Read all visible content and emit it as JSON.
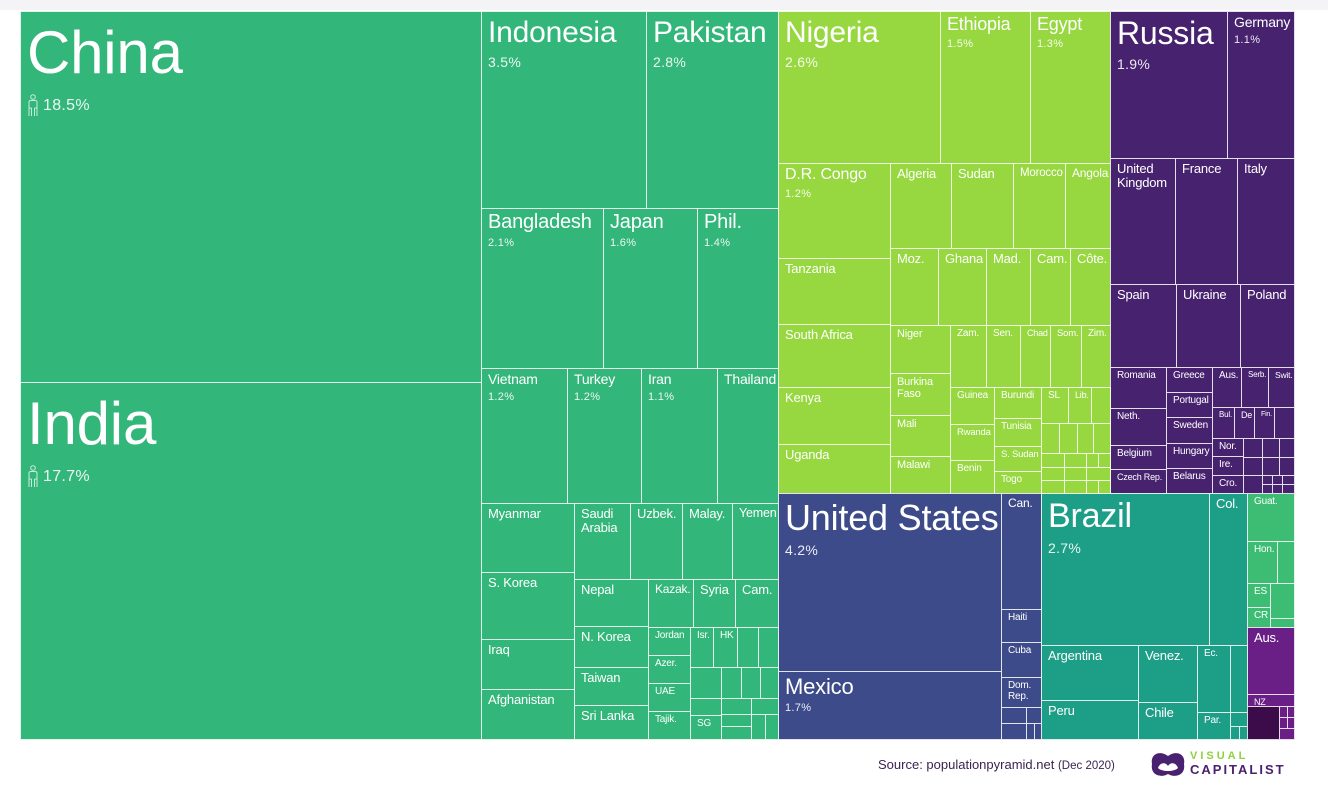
{
  "chart_data": {
    "type": "treemap",
    "title": "",
    "region_colors": {
      "asia": "#33b67a",
      "africa": "#97d73f",
      "europe": "#47226f",
      "north_america": "#3e4b8a",
      "south_america": "#1d9e87",
      "central_america": "#3dbd74",
      "oceania": "#6a1f86",
      "oceania_dark": "#3b0b4a"
    },
    "cells": [
      {
        "name": "China",
        "region": "asia",
        "share": "18.5%"
      },
      {
        "name": "India",
        "region": "asia",
        "share": "17.7%"
      },
      {
        "name": "Indonesia",
        "region": "asia",
        "share": "3.5%"
      },
      {
        "name": "Pakistan",
        "region": "asia",
        "share": "2.8%"
      },
      {
        "name": "Bangladesh",
        "region": "asia",
        "share": "2.1%"
      },
      {
        "name": "Japan",
        "region": "asia",
        "share": "1.6%"
      },
      {
        "name": "Phil.",
        "region": "asia",
        "share": "1.4%"
      },
      {
        "name": "Vietnam",
        "region": "asia",
        "share": "1.2%"
      },
      {
        "name": "Turkey",
        "region": "asia",
        "share": "1.2%"
      },
      {
        "name": "Iran",
        "region": "asia",
        "share": "1.1%"
      },
      {
        "name": "Thailand",
        "region": "asia"
      },
      {
        "name": "Myanmar",
        "region": "asia"
      },
      {
        "name": "S. Korea",
        "region": "asia"
      },
      {
        "name": "Iraq",
        "region": "asia"
      },
      {
        "name": "Afghanistan",
        "region": "asia"
      },
      {
        "name": "Saudi\nArabia",
        "region": "asia"
      },
      {
        "name": "Uzbek.",
        "region": "asia"
      },
      {
        "name": "Malay.",
        "region": "asia"
      },
      {
        "name": "Yemen",
        "region": "asia"
      },
      {
        "name": "Nepal",
        "region": "asia"
      },
      {
        "name": "N. Korea",
        "region": "asia"
      },
      {
        "name": "Taiwan",
        "region": "asia"
      },
      {
        "name": "Sri Lanka",
        "region": "asia"
      },
      {
        "name": "Kazak.",
        "region": "asia"
      },
      {
        "name": "Syria",
        "region": "asia"
      },
      {
        "name": "Cam.",
        "region": "asia"
      },
      {
        "name": "Jordan",
        "region": "asia"
      },
      {
        "name": "Isr.",
        "region": "asia"
      },
      {
        "name": "HK",
        "region": "asia"
      },
      {
        "name": "Azer.",
        "region": "asia"
      },
      {
        "name": "UAE",
        "region": "asia"
      },
      {
        "name": "Tajik.",
        "region": "asia"
      },
      {
        "name": "SG",
        "region": "asia"
      },
      {
        "name": "Nigeria",
        "region": "africa",
        "share": "2.6%"
      },
      {
        "name": "Ethiopia",
        "region": "africa",
        "share": "1.5%"
      },
      {
        "name": "Egypt",
        "region": "africa",
        "share": "1.3%"
      },
      {
        "name": "D.R. Congo",
        "region": "africa",
        "share": "1.2%"
      },
      {
        "name": "Tanzania",
        "region": "africa"
      },
      {
        "name": "South Africa",
        "region": "africa"
      },
      {
        "name": "Kenya",
        "region": "africa"
      },
      {
        "name": "Uganda",
        "region": "africa"
      },
      {
        "name": "Algeria",
        "region": "africa"
      },
      {
        "name": "Sudan",
        "region": "africa"
      },
      {
        "name": "Morocco",
        "region": "africa"
      },
      {
        "name": "Angola",
        "region": "africa"
      },
      {
        "name": "Moz.",
        "region": "africa"
      },
      {
        "name": "Ghana",
        "region": "africa"
      },
      {
        "name": "Mad.",
        "region": "africa"
      },
      {
        "name": "Cam.",
        "region": "africa"
      },
      {
        "name": "Côte.",
        "region": "africa"
      },
      {
        "name": "Niger",
        "region": "africa"
      },
      {
        "name": "Burkina\nFaso",
        "region": "africa"
      },
      {
        "name": "Mali",
        "region": "africa"
      },
      {
        "name": "Malawi",
        "region": "africa"
      },
      {
        "name": "Zam.",
        "region": "africa"
      },
      {
        "name": "Sen.",
        "region": "africa"
      },
      {
        "name": "Chad",
        "region": "africa"
      },
      {
        "name": "Som.",
        "region": "africa"
      },
      {
        "name": "Zim.",
        "region": "africa"
      },
      {
        "name": "Guinea",
        "region": "africa"
      },
      {
        "name": "Rwanda",
        "region": "africa"
      },
      {
        "name": "Benin",
        "region": "africa"
      },
      {
        "name": "Burundi",
        "region": "africa"
      },
      {
        "name": "Tunisia",
        "region": "africa"
      },
      {
        "name": "S. Sudan",
        "region": "africa"
      },
      {
        "name": "Togo",
        "region": "africa"
      },
      {
        "name": "SL",
        "region": "africa"
      },
      {
        "name": "Lib.",
        "region": "africa"
      },
      {
        "name": "Russia",
        "region": "europe",
        "share": "1.9%"
      },
      {
        "name": "Germany",
        "region": "europe",
        "share": "1.1%"
      },
      {
        "name": "United\nKingdom",
        "region": "europe"
      },
      {
        "name": "France",
        "region": "europe"
      },
      {
        "name": "Italy",
        "region": "europe"
      },
      {
        "name": "Spain",
        "region": "europe"
      },
      {
        "name": "Ukraine",
        "region": "europe"
      },
      {
        "name": "Poland",
        "region": "europe"
      },
      {
        "name": "Romania",
        "region": "europe"
      },
      {
        "name": "Neth.",
        "region": "europe"
      },
      {
        "name": "Belgium",
        "region": "europe"
      },
      {
        "name": "Czech Rep.",
        "region": "europe"
      },
      {
        "name": "Greece",
        "region": "europe"
      },
      {
        "name": "Portugal",
        "region": "europe"
      },
      {
        "name": "Sweden",
        "region": "europe"
      },
      {
        "name": "Hungary",
        "region": "europe"
      },
      {
        "name": "Belarus",
        "region": "europe"
      },
      {
        "name": "Aus.",
        "region": "europe"
      },
      {
        "name": "Serb.",
        "region": "europe"
      },
      {
        "name": "Swit.",
        "region": "europe"
      },
      {
        "name": "Bul.",
        "region": "europe"
      },
      {
        "name": "De",
        "region": "europe"
      },
      {
        "name": "Fin.",
        "region": "europe"
      },
      {
        "name": "Nor.",
        "region": "europe"
      },
      {
        "name": "Ire.",
        "region": "europe"
      },
      {
        "name": "Cro.",
        "region": "europe"
      },
      {
        "name": "United States",
        "region": "north_america",
        "share": "4.2%"
      },
      {
        "name": "Mexico",
        "region": "north_america",
        "share": "1.7%"
      },
      {
        "name": "Can.",
        "region": "north_america"
      },
      {
        "name": "Haiti",
        "region": "north_america"
      },
      {
        "name": "Cuba",
        "region": "north_america"
      },
      {
        "name": "Dom.\nRep.",
        "region": "north_america"
      },
      {
        "name": "Brazil",
        "region": "south_america",
        "share": "2.7%"
      },
      {
        "name": "Col.",
        "region": "south_america"
      },
      {
        "name": "Argentina",
        "region": "south_america"
      },
      {
        "name": "Peru",
        "region": "south_america"
      },
      {
        "name": "Venez.",
        "region": "south_america"
      },
      {
        "name": "Chile",
        "region": "south_america"
      },
      {
        "name": "Ec.",
        "region": "south_america"
      },
      {
        "name": "Par.",
        "region": "south_america"
      },
      {
        "name": "Guat.",
        "region": "central_america"
      },
      {
        "name": "Hon.",
        "region": "central_america"
      },
      {
        "name": "ES",
        "region": "central_america"
      },
      {
        "name": "CR",
        "region": "central_america"
      },
      {
        "name": "Aus.",
        "region": "oceania"
      },
      {
        "name": "NZ",
        "region": "oceania"
      }
    ]
  },
  "footer": {
    "source": "Source: populationpyramid.net",
    "date": "(Dec 2020)",
    "logo_line1": "VISUAL",
    "logo_line2": "CAPITALIST"
  }
}
